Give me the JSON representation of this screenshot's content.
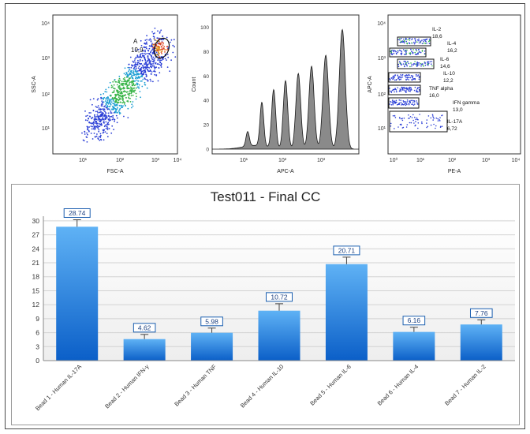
{
  "flow_plots": {
    "dot_plot": {
      "xlabel": "FSC-A",
      "ylabel": "SSC-A",
      "x_ticks": [
        "10¹",
        "10²",
        "10³",
        "10⁴"
      ],
      "y_ticks": [
        "10¹",
        "10²",
        "10³",
        "10⁴"
      ],
      "gate": {
        "name": "A",
        "value": "19,9"
      }
    },
    "histogram": {
      "xlabel": "APC-A",
      "ylabel": "Count",
      "x_ticks": [
        "10¹",
        "10²",
        "10³"
      ],
      "y_ticks": [
        "0",
        "20",
        "40",
        "60",
        "80",
        "100"
      ],
      "ylim": [
        0,
        110
      ],
      "peaks_log10": [
        1.55,
        1.85,
        2.1,
        2.35,
        2.62,
        2.9,
        3.2,
        3.55
      ],
      "peak_heights": [
        12,
        36,
        48,
        56,
        62,
        68,
        77,
        98
      ]
    },
    "bead_plot": {
      "xlabel": "PE-A",
      "ylabel": "APC-A",
      "x_ticks": [
        "10⁰",
        "10¹",
        "10²",
        "10³",
        "10⁴"
      ],
      "y_ticks": [
        "10¹",
        "10²",
        "10³",
        "10⁴"
      ],
      "gates": [
        {
          "name": "IL-2",
          "value": "18,6"
        },
        {
          "name": "IL-4",
          "value": "16,2"
        },
        {
          "name": "IL-6",
          "value": "14,6"
        },
        {
          "name": "IL-10",
          "value": "12,2"
        },
        {
          "name": "TNF alpha",
          "value": "16,0"
        },
        {
          "name": "IFN gamma",
          "value": "13,0"
        },
        {
          "name": "IL-17A",
          "value": "6,72"
        }
      ]
    }
  },
  "chart_data": {
    "type": "bar",
    "title": "Test011 - Final CC",
    "categories": [
      "Bead 1 - Human IL-17A",
      "Bead 2 - Human IFN-γ",
      "Bead 3 - Human TNF",
      "Bead 4 - Human IL-10",
      "Bead 5 - Human IL-6",
      "Bead 6 - Human IL-4",
      "Bead 7 - Human IL-2"
    ],
    "values": [
      28.74,
      4.62,
      5.98,
      10.72,
      20.71,
      6.16,
      7.76
    ],
    "value_labels": [
      "28.74",
      "4.62",
      "5.98",
      "10.72",
      "20.71",
      "6.16",
      "7.76"
    ],
    "error": [
      1.5,
      1.0,
      1.0,
      1.5,
      1.5,
      1.0,
      1.0
    ],
    "ylim": [
      0,
      31
    ],
    "yticks": [
      0,
      3,
      6,
      9,
      12,
      15,
      18,
      21,
      24,
      27,
      30
    ],
    "grid": true,
    "colors": {
      "bar_top": "#5fb2f5",
      "bar_bottom": "#0b5fc8",
      "label_border": "#1b5fb0",
      "grid": "#d2d2d2"
    }
  }
}
